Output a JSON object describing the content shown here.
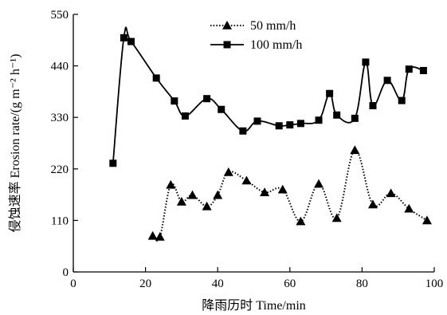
{
  "chart_data": {
    "type": "line",
    "xlabel": "降雨历时 Time/min",
    "ylabel": "侵蚀速率 Erosion rate/(g m⁻² h⁻¹)",
    "xlim": [
      0,
      100
    ],
    "ylim": [
      0,
      550
    ],
    "xticks": [
      0,
      20,
      40,
      60,
      80,
      100
    ],
    "yticks": [
      0,
      110,
      220,
      330,
      440,
      550
    ],
    "grid": false,
    "legend_position": "top-center",
    "series": [
      {
        "name": "50 mm/h",
        "marker": "triangle",
        "line_style": "dotted",
        "color": "#000000",
        "x": [
          22,
          24,
          27,
          30,
          33,
          37,
          40,
          43,
          48,
          53,
          58,
          63,
          68,
          73,
          78,
          83,
          88,
          93,
          98
        ],
        "y": [
          77,
          75,
          186,
          150,
          164,
          140,
          164,
          213,
          195,
          170,
          176,
          108,
          188,
          115,
          260,
          144,
          168,
          135,
          110
        ]
      },
      {
        "name": "100 mm/h",
        "marker": "square",
        "line_style": "solid",
        "color": "#000000",
        "x": [
          11,
          14,
          16,
          23,
          28,
          31,
          37,
          41,
          47,
          51,
          57,
          60,
          63,
          68,
          71,
          73,
          78,
          81,
          83,
          87,
          91,
          93,
          97
        ],
        "y": [
          232,
          500,
          492,
          414,
          365,
          333,
          370,
          347,
          301,
          322,
          312,
          314,
          317,
          324,
          381,
          335,
          328,
          448,
          355,
          409,
          366,
          433,
          430
        ]
      }
    ]
  }
}
